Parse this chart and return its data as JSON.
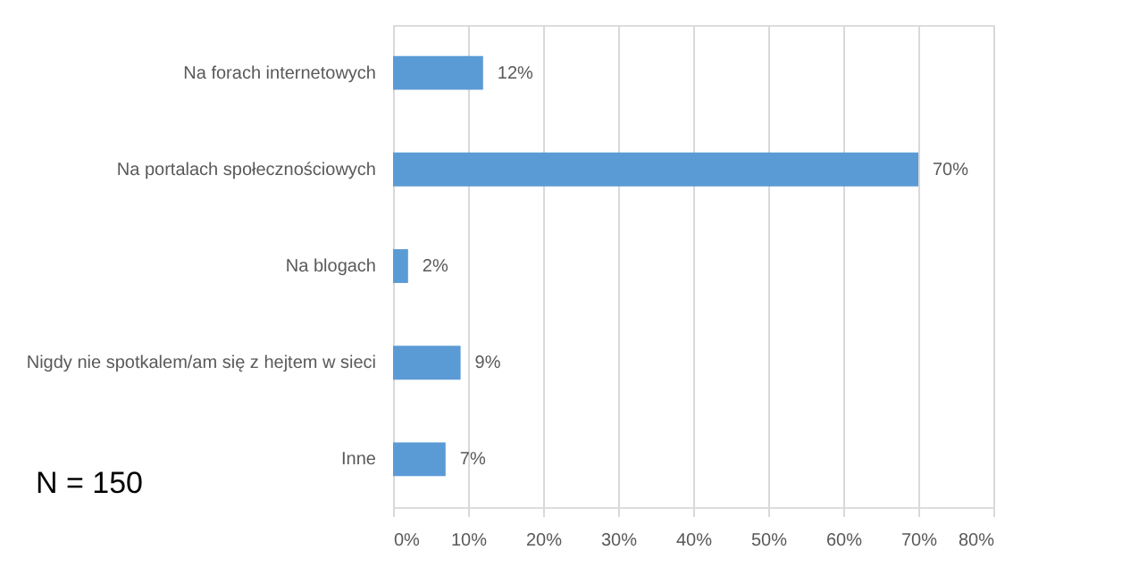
{
  "chart_data": {
    "type": "bar",
    "orientation": "horizontal",
    "categories": [
      "Na forach internetowych",
      "Na portalach społecznościowych",
      "Na blogach",
      "Nigdy nie spotkalem/am się z hejtem w sieci",
      "Inne"
    ],
    "values": [
      12,
      70,
      2,
      9,
      7
    ],
    "value_labels": [
      "12%",
      "70%",
      "2%",
      "9%",
      "7%"
    ],
    "color": "#5b9bd5",
    "xlim": [
      0,
      80
    ],
    "xticks": [
      {
        "value": 0,
        "label": "0%"
      },
      {
        "value": 10,
        "label": "10%"
      },
      {
        "value": 20,
        "label": "20%"
      },
      {
        "value": 30,
        "label": "30%"
      },
      {
        "value": 40,
        "label": "40%"
      },
      {
        "value": 50,
        "label": "50%"
      },
      {
        "value": 60,
        "label": "60%"
      },
      {
        "value": 70,
        "label": "70%"
      },
      {
        "value": 80,
        "label": "80%"
      }
    ],
    "grid": "x",
    "annotations": [
      "N = 150"
    ]
  }
}
